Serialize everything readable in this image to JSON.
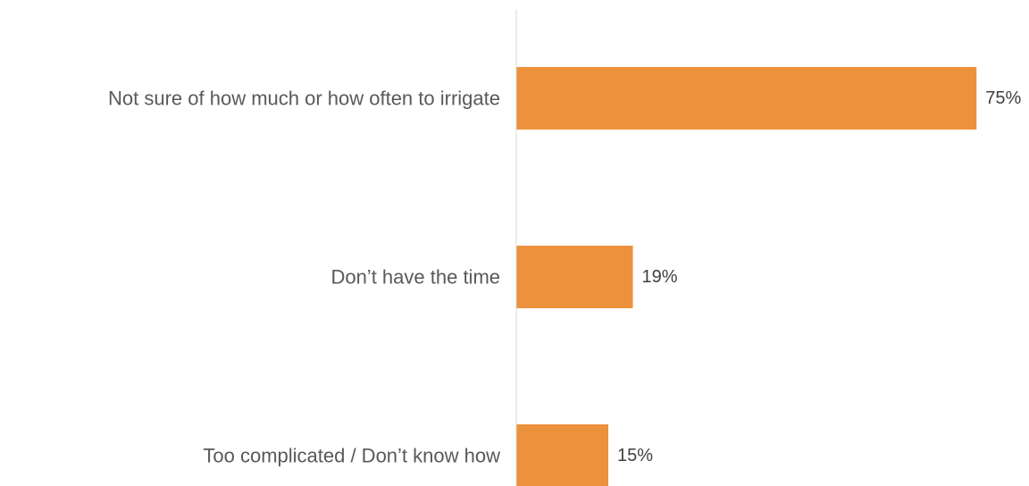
{
  "chart_data": {
    "type": "bar",
    "orientation": "horizontal",
    "categories": [
      "Not sure of how much or how often to irrigate",
      "Don’t have the time",
      "Too complicated / Don’t know how"
    ],
    "values": [
      75,
      19,
      15
    ],
    "value_labels": [
      "75%",
      "19%",
      "15%"
    ],
    "unit": "%",
    "xlim": [
      0,
      80
    ],
    "grid": false,
    "legend": "none",
    "bar_color": "#EC913C",
    "axis_color": "#D9D9D9"
  }
}
